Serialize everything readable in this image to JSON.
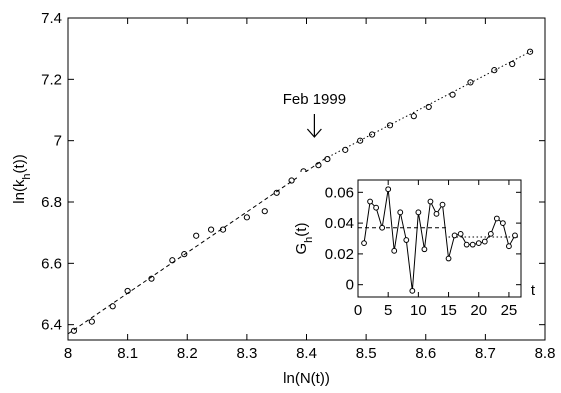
{
  "chart_data": [
    {
      "type": "scatter",
      "xlabel_parts": [
        "ln(k",
        "h",
        "(t))"
      ],
      "xlabel": "ln(N(t))",
      "ylabel": "ln(k_h(t))",
      "xlim": [
        8.0,
        8.8
      ],
      "ylim": [
        6.35,
        7.4
      ],
      "x_ticks": [
        8,
        8.1,
        8.2,
        8.3,
        8.4,
        8.5,
        8.6,
        8.7,
        8.8
      ],
      "x_tick_labels": [
        "8",
        "8.1",
        "8.2",
        "8.3",
        "8.4",
        "8.5",
        "8.6",
        "8.7",
        "8.8"
      ],
      "y_ticks": [
        6.4,
        6.6,
        6.8,
        7,
        7.2,
        7.4
      ],
      "y_tick_labels": [
        "6.4",
        "6.6",
        "6.8",
        "7",
        "7.2",
        "7.4"
      ],
      "series": [
        {
          "marker": "circle",
          "points": [
            [
              8.01,
              6.38
            ],
            [
              8.04,
              6.41
            ],
            [
              8.075,
              6.46
            ],
            [
              8.1,
              6.51
            ],
            [
              8.14,
              6.55
            ],
            [
              8.175,
              6.61
            ],
            [
              8.195,
              6.63
            ],
            [
              8.215,
              6.69
            ],
            [
              8.24,
              6.71
            ],
            [
              8.26,
              6.71
            ],
            [
              8.3,
              6.75
            ],
            [
              8.33,
              6.77
            ],
            [
              8.35,
              6.83
            ],
            [
              8.375,
              6.87
            ],
            [
              8.395,
              6.9
            ],
            [
              8.42,
              6.92
            ],
            [
              8.435,
              6.94
            ],
            [
              8.465,
              6.97
            ],
            [
              8.49,
              7.0
            ],
            [
              8.51,
              7.02
            ],
            [
              8.54,
              7.05
            ],
            [
              8.58,
              7.08
            ],
            [
              8.605,
              7.11
            ],
            [
              8.645,
              7.15
            ],
            [
              8.675,
              7.19
            ],
            [
              8.715,
              7.23
            ],
            [
              8.745,
              7.25
            ],
            [
              8.775,
              7.29
            ]
          ]
        }
      ],
      "fit_lines": [
        {
          "style": "dashed",
          "points": [
            [
              8.0,
              6.37
            ],
            [
              8.43,
              6.94
            ]
          ]
        },
        {
          "style": "dotted",
          "points": [
            [
              8.43,
              6.94
            ],
            [
              8.78,
              7.295
            ]
          ]
        }
      ],
      "annotation": {
        "text": "Feb 1999",
        "x": 8.43,
        "y": 6.95
      }
    },
    {
      "type": "line",
      "inset": true,
      "xlabel": "t",
      "ylabel_parts": [
        "G",
        "h",
        "(t)"
      ],
      "xlim": [
        0,
        27
      ],
      "ylim": [
        -0.008,
        0.068
      ],
      "x_ticks": [
        0,
        5,
        10,
        15,
        20,
        25
      ],
      "x_tick_labels": [
        "0",
        "5",
        "10",
        "15",
        "20",
        "25"
      ],
      "y_ticks": [
        0,
        0.02,
        0.04,
        0.06
      ],
      "y_tick_labels": [
        "0",
        "0.02",
        "0.04",
        "0.06"
      ],
      "series": [
        {
          "marker": "circle",
          "x": [
            1,
            2,
            3,
            4,
            5,
            6,
            7,
            8,
            9,
            10,
            11,
            12,
            13,
            14,
            15,
            16,
            17,
            18,
            19,
            20,
            21,
            22,
            23,
            24,
            25,
            26
          ],
          "y": [
            0.027,
            0.054,
            0.05,
            0.037,
            0.062,
            0.022,
            0.047,
            0.029,
            -0.004,
            0.047,
            0.023,
            0.054,
            0.046,
            0.052,
            0.017,
            0.032,
            0.033,
            0.026,
            0.026,
            0.027,
            0.028,
            0.033,
            0.043,
            0.04,
            0.025,
            0.032
          ]
        }
      ],
      "reference_lines": [
        {
          "style": "dashed",
          "x": [
            0,
            15
          ],
          "y": 0.037
        },
        {
          "style": "dotted",
          "x": [
            15,
            26.5
          ],
          "y": 0.031
        }
      ]
    }
  ]
}
